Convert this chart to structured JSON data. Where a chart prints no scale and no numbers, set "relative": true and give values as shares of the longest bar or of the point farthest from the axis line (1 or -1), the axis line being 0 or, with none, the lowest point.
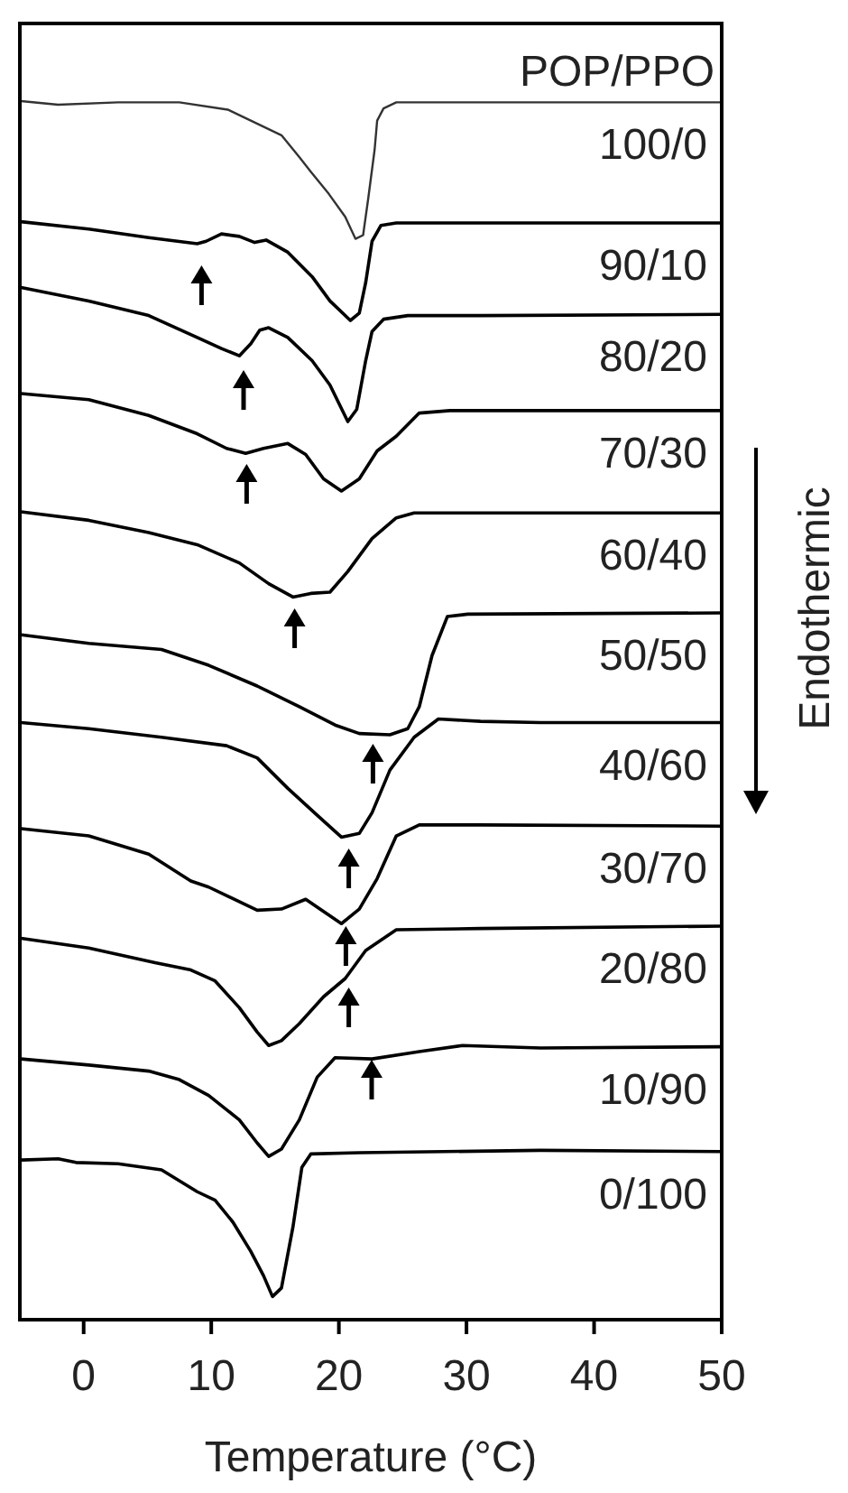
{
  "chart_data": {
    "type": "line",
    "relative": true,
    "xlabel": "Temperature (°C)",
    "xlim": [
      -5,
      50
    ],
    "xticks": [
      0,
      10,
      20,
      30,
      40,
      50
    ],
    "grid": false,
    "legend": false,
    "marker": "none",
    "line_style": "solid",
    "annotations": [
      "POP/PPO",
      "Endothermic"
    ],
    "series": [
      {
        "name": "100/0",
        "color": "#333333",
        "x": [
          -4.9,
          -2.0,
          2.7,
          7.5,
          11.3,
          13.1,
          15.5,
          16.9,
          17.8,
          19.2,
          20.5,
          21.3,
          21.9,
          22.3,
          22.8,
          23.0,
          23.5,
          24.5,
          31.1,
          40.5,
          50
        ],
        "values": [
          1.0,
          0.997,
          0.999,
          0.999,
          0.993,
          0.984,
          0.972,
          0.954,
          0.942,
          0.924,
          0.905,
          0.887,
          0.89,
          0.92,
          0.96,
          0.984,
          0.994,
          0.999,
          0.999,
          0.999,
          0.999
        ]
      },
      {
        "name": "90/10",
        "color": "#000000",
        "x": [
          -4.9,
          0.4,
          5.1,
          8.9,
          9.6,
          10.8,
          12.2,
          13.4,
          14.3,
          16.0,
          17.9,
          19.3,
          20.9,
          21.6,
          22.1,
          22.6,
          23.3,
          24.5,
          31.1,
          50
        ],
        "values": [
          0.901,
          0.895,
          0.888,
          0.883,
          0.885,
          0.891,
          0.889,
          0.884,
          0.886,
          0.876,
          0.856,
          0.836,
          0.82,
          0.826,
          0.851,
          0.885,
          0.898,
          0.9,
          0.9,
          0.9
        ]
      },
      {
        "name": "80/20",
        "color": "#000000",
        "x": [
          -4.9,
          0.4,
          5.1,
          8.9,
          10.8,
          12.2,
          13.1,
          13.8,
          14.5,
          16.0,
          17.9,
          19.3,
          20.7,
          21.4,
          22.1,
          22.6,
          23.5,
          25.4,
          31.1,
          50
        ],
        "values": [
          0.847,
          0.836,
          0.824,
          0.806,
          0.797,
          0.791,
          0.801,
          0.812,
          0.814,
          0.806,
          0.787,
          0.767,
          0.737,
          0.747,
          0.787,
          0.811,
          0.821,
          0.824,
          0.824,
          0.825
        ]
      },
      {
        "name": "70/30",
        "color": "#000000",
        "x": [
          -4.9,
          0.4,
          5.1,
          8.9,
          11.2,
          12.7,
          14.1,
          16.0,
          17.4,
          18.8,
          20.2,
          21.6,
          23.0,
          24.5,
          26.3,
          28.7,
          31.1,
          50
        ],
        "values": [
          0.76,
          0.755,
          0.742,
          0.727,
          0.715,
          0.711,
          0.715,
          0.719,
          0.71,
          0.69,
          0.68,
          0.69,
          0.713,
          0.725,
          0.744,
          0.746,
          0.746,
          0.746
        ]
      },
      {
        "name": "60/40",
        "color": "#000000",
        "x": [
          -4.9,
          0.4,
          5.1,
          8.9,
          12.2,
          14.5,
          16.4,
          17.8,
          19.3,
          20.7,
          22.6,
          24.5,
          25.9,
          31.1,
          50
        ],
        "values": [
          0.663,
          0.656,
          0.646,
          0.636,
          0.621,
          0.604,
          0.593,
          0.596,
          0.597,
          0.614,
          0.641,
          0.658,
          0.662,
          0.662,
          0.662
        ]
      },
      {
        "name": "50/50",
        "color": "#000000",
        "x": [
          -4.9,
          0.4,
          6.1,
          9.8,
          13.6,
          16.9,
          19.7,
          21.6,
          24.0,
          25.4,
          26.3,
          27.3,
          28.5,
          30.1,
          50
        ],
        "values": [
          0.562,
          0.555,
          0.55,
          0.537,
          0.52,
          0.503,
          0.488,
          0.481,
          0.48,
          0.485,
          0.503,
          0.545,
          0.577,
          0.579,
          0.58
        ]
      },
      {
        "name": "40/60",
        "color": "#000000",
        "x": [
          -4.9,
          0.4,
          6.1,
          11.2,
          13.6,
          16.0,
          18.3,
          20.2,
          21.6,
          22.6,
          24.0,
          25.9,
          27.8,
          31.1,
          35.8,
          50
        ],
        "values": [
          0.49,
          0.485,
          0.478,
          0.471,
          0.461,
          0.436,
          0.414,
          0.396,
          0.399,
          0.416,
          0.451,
          0.478,
          0.493,
          0.491,
          0.49,
          0.49
        ]
      },
      {
        "name": "30/70",
        "color": "#000000",
        "x": [
          -4.9,
          0.4,
          5.1,
          8.4,
          9.8,
          13.6,
          15.5,
          17.4,
          18.8,
          20.2,
          21.6,
          23.0,
          24.5,
          26.3,
          31.1,
          50
        ],
        "values": [
          0.403,
          0.397,
          0.382,
          0.36,
          0.355,
          0.336,
          0.337,
          0.345,
          0.335,
          0.325,
          0.337,
          0.362,
          0.397,
          0.406,
          0.406,
          0.405
        ]
      },
      {
        "name": "20/80",
        "color": "#000000",
        "x": [
          -4.9,
          0.4,
          5.6,
          8.4,
          10.3,
          12.2,
          13.6,
          14.5,
          15.5,
          16.9,
          18.8,
          20.5,
          22.1,
          24.5,
          31.1,
          50
        ],
        "values": [
          0.313,
          0.305,
          0.293,
          0.287,
          0.278,
          0.256,
          0.236,
          0.225,
          0.229,
          0.243,
          0.265,
          0.28,
          0.303,
          0.32,
          0.321,
          0.323
        ]
      },
      {
        "name": "10/90",
        "color": "#000000",
        "x": [
          -4.9,
          0.4,
          5.1,
          7.5,
          9.8,
          12.2,
          13.6,
          14.5,
          15.5,
          16.9,
          18.3,
          19.7,
          22.6,
          26.3,
          29.7,
          35.8,
          50
        ],
        "values": [
          0.214,
          0.209,
          0.204,
          0.197,
          0.184,
          0.164,
          0.145,
          0.134,
          0.14,
          0.164,
          0.199,
          0.215,
          0.214,
          0.22,
          0.225,
          0.223,
          0.224
        ]
      },
      {
        "name": "0/100",
        "color": "#000000",
        "x": [
          -4.9,
          -2.0,
          -0.6,
          2.7,
          6.1,
          8.9,
          10.3,
          11.7,
          13.1,
          14.1,
          14.8,
          15.5,
          16.4,
          17.1,
          17.8,
          21.6,
          35.8,
          50
        ],
        "values": [
          0.131,
          0.132,
          0.129,
          0.128,
          0.123,
          0.105,
          0.098,
          0.08,
          0.056,
          0.036,
          0.019,
          0.026,
          0.076,
          0.125,
          0.136,
          0.137,
          0.139,
          0.138
        ]
      }
    ]
  }
}
